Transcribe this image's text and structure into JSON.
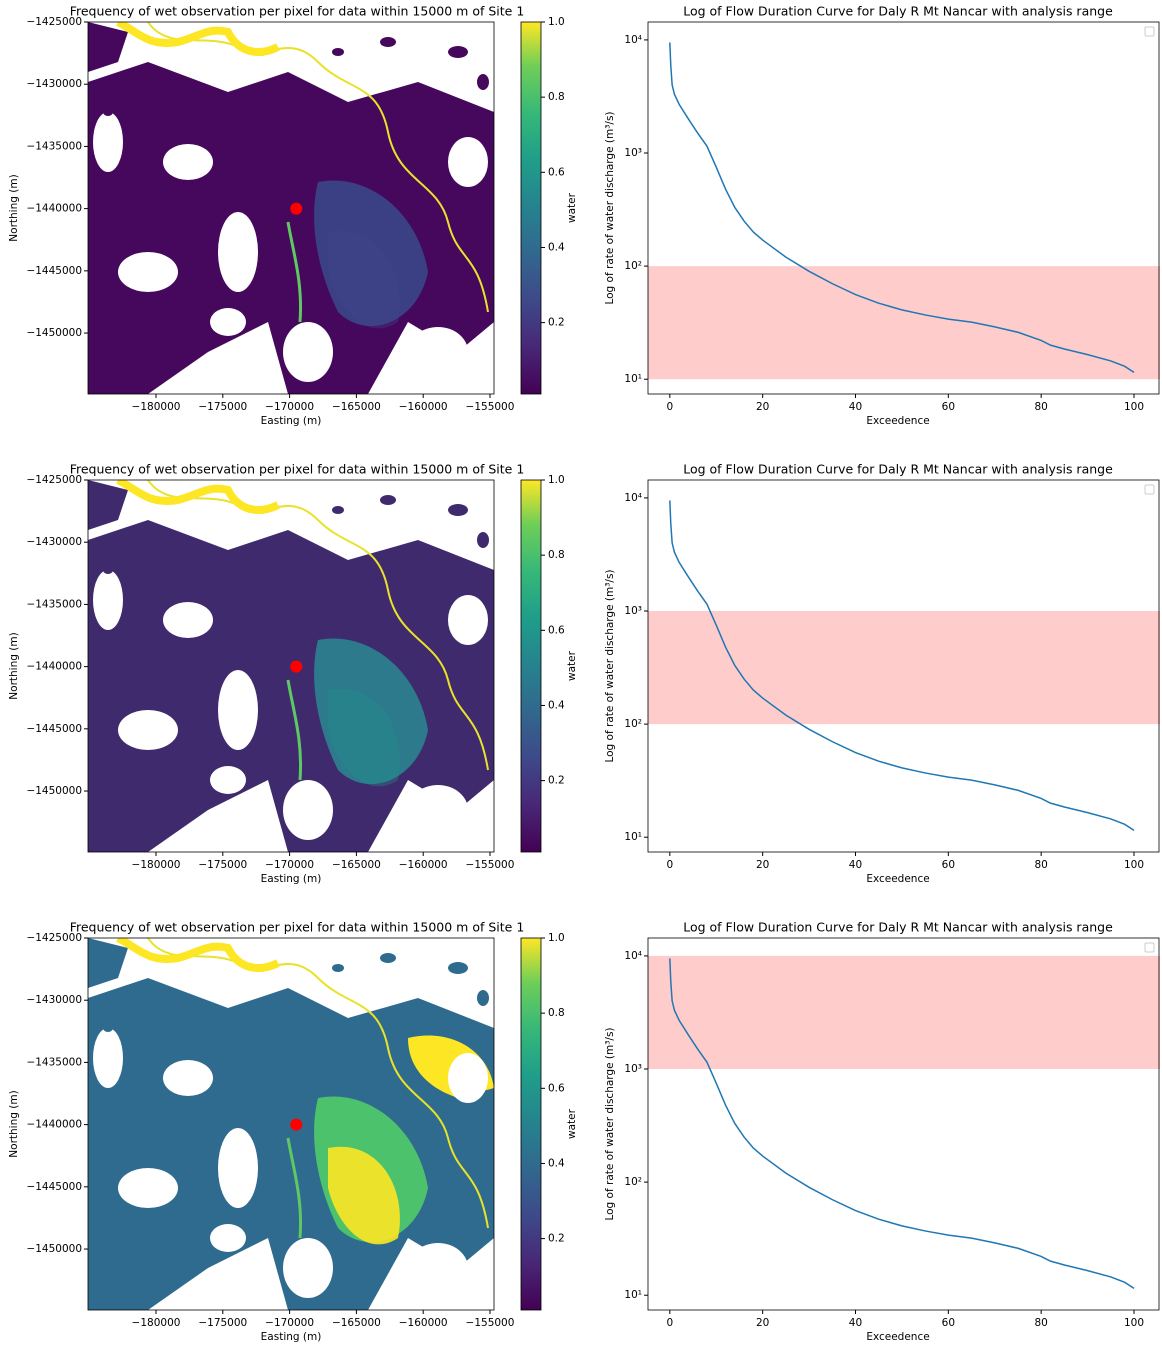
{
  "chart_data": [
    {
      "type": "raster-map",
      "title": "Frequency of wet observation per pixel for data within 15000 m of Site 1",
      "xlabel": "Easting (m)",
      "ylabel": "Northing (m)",
      "xlim": [
        -185090,
        -154700
      ],
      "ylim": [
        -1454900,
        -1425000
      ],
      "xticks": [
        {
          "value": -180000,
          "label": "−180000"
        },
        {
          "value": -175000,
          "label": "−175000"
        },
        {
          "value": -170000,
          "label": "−170000"
        },
        {
          "value": -165000,
          "label": "−165000"
        },
        {
          "value": -160000,
          "label": "−160000"
        },
        {
          "value": -155000,
          "label": "−155000"
        }
      ],
      "yticks": [
        {
          "value": -1425000,
          "label": "−1425000"
        },
        {
          "value": -1430000,
          "label": "−1430000"
        },
        {
          "value": -1435000,
          "label": "−1435000"
        },
        {
          "value": -1440000,
          "label": "−1440000"
        },
        {
          "value": -1445000,
          "label": "−1445000"
        },
        {
          "value": -1450000,
          "label": "−1450000"
        }
      ],
      "colorbar": {
        "label": "water",
        "colormap": "viridis",
        "lim": [
          0.01,
          1
        ],
        "ticks": [
          0.2,
          0.4,
          0.6,
          0.8,
          {
            "value": 1,
            "label": "1.0"
          }
        ]
      },
      "points": {
        "x": [
          -169500
        ],
        "y": [
          -1440000
        ],
        "color": "#ff0000"
      }
    },
    {
      "type": "line",
      "title": "Log of Flow Duration Curve for Daly R Mt Nancar with analysis range",
      "xlabel": "Exceedence",
      "ylabel": "Log of rate of water discharge (m³/s)",
      "log_y": true,
      "xlim": [
        -4.7,
        105.6
      ],
      "ylim": [
        7.4,
        14400
      ],
      "xticks": [
        0,
        20,
        40,
        60,
        80,
        100
      ],
      "yticks": [
        {
          "value": 10,
          "label": "10¹"
        },
        {
          "value": 100,
          "label": "10²"
        },
        {
          "value": 1000,
          "label": "10³"
        },
        {
          "value": 10000,
          "label": "10⁴"
        }
      ],
      "x": [
        0,
        0.2,
        0.5,
        1,
        2,
        4,
        6,
        8,
        10,
        12,
        14,
        16,
        18,
        20,
        25,
        30,
        35,
        40,
        45,
        50,
        55,
        60,
        65,
        70,
        75,
        80,
        82,
        85,
        90,
        95,
        98,
        100
      ],
      "series": [
        {
          "color": "#1f77b4",
          "values": [
            9500,
            6000,
            4000,
            3300,
            2700,
            2000,
            1500,
            1150,
            750,
            480,
            330,
            250,
            200,
            170,
            120,
            90,
            70,
            56,
            47,
            41,
            37,
            34,
            32,
            29,
            26,
            22,
            20,
            18.5,
            16.5,
            14.5,
            13,
            11.5
          ]
        }
      ],
      "span": {
        "range": [
          10,
          100
        ],
        "color": "#ffcccc"
      },
      "legend": "upper right"
    },
    {
      "type": "raster-map",
      "title": "Frequency of wet observation per pixel for data within 15000 m of Site 1",
      "xlabel": "Easting (m)",
      "ylabel": "Northing (m)",
      "xlim": [
        -185090,
        -154700
      ],
      "ylim": [
        -1454900,
        -1425000
      ],
      "xticks": [
        {
          "value": -180000,
          "label": "−180000"
        },
        {
          "value": -175000,
          "label": "−175000"
        },
        {
          "value": -170000,
          "label": "−170000"
        },
        {
          "value": -165000,
          "label": "−165000"
        },
        {
          "value": -160000,
          "label": "−160000"
        },
        {
          "value": -155000,
          "label": "−155000"
        }
      ],
      "yticks": [
        {
          "value": -1425000,
          "label": "−1425000"
        },
        {
          "value": -1430000,
          "label": "−1430000"
        },
        {
          "value": -1435000,
          "label": "−1435000"
        },
        {
          "value": -1440000,
          "label": "−1440000"
        },
        {
          "value": -1445000,
          "label": "−1445000"
        },
        {
          "value": -1450000,
          "label": "−1450000"
        }
      ],
      "colorbar": {
        "label": "water",
        "colormap": "viridis",
        "lim": [
          0.01,
          1
        ],
        "ticks": [
          0.2,
          0.4,
          0.6,
          0.8,
          {
            "value": 1,
            "label": "1.0"
          }
        ]
      },
      "points": {
        "x": [
          -169500
        ],
        "y": [
          -1440000
        ],
        "color": "#ff0000"
      }
    },
    {
      "type": "line",
      "title": "Log of Flow Duration Curve for Daly R Mt Nancar with analysis range",
      "xlabel": "Exceedence",
      "ylabel": "Log of rate of water discharge (m³/s)",
      "log_y": true,
      "xlim": [
        -4.7,
        105.6
      ],
      "ylim": [
        7.4,
        14400
      ],
      "xticks": [
        0,
        20,
        40,
        60,
        80,
        100
      ],
      "yticks": [
        {
          "value": 10,
          "label": "10¹"
        },
        {
          "value": 100,
          "label": "10²"
        },
        {
          "value": 1000,
          "label": "10³"
        },
        {
          "value": 10000,
          "label": "10⁴"
        }
      ],
      "x": [
        0,
        0.2,
        0.5,
        1,
        2,
        4,
        6,
        8,
        10,
        12,
        14,
        16,
        18,
        20,
        25,
        30,
        35,
        40,
        45,
        50,
        55,
        60,
        65,
        70,
        75,
        80,
        82,
        85,
        90,
        95,
        98,
        100
      ],
      "series": [
        {
          "color": "#1f77b4",
          "values": [
            9500,
            6000,
            4000,
            3300,
            2700,
            2000,
            1500,
            1150,
            750,
            480,
            330,
            250,
            200,
            170,
            120,
            90,
            70,
            56,
            47,
            41,
            37,
            34,
            32,
            29,
            26,
            22,
            20,
            18.5,
            16.5,
            14.5,
            13,
            11.5
          ]
        }
      ],
      "span": {
        "range": [
          100,
          1000
        ],
        "color": "#ffcccc"
      },
      "legend": "upper right"
    },
    {
      "type": "raster-map",
      "title": "Frequency of wet observation per pixel for data within 15000 m of Site 1",
      "xlabel": "Easting (m)",
      "ylabel": "Northing (m)",
      "xlim": [
        -185090,
        -154700
      ],
      "ylim": [
        -1454900,
        -1425000
      ],
      "xticks": [
        {
          "value": -180000,
          "label": "−180000"
        },
        {
          "value": -175000,
          "label": "−175000"
        },
        {
          "value": -170000,
          "label": "−170000"
        },
        {
          "value": -165000,
          "label": "−165000"
        },
        {
          "value": -160000,
          "label": "−160000"
        },
        {
          "value": -155000,
          "label": "−155000"
        }
      ],
      "yticks": [
        {
          "value": -1425000,
          "label": "−1425000"
        },
        {
          "value": -1430000,
          "label": "−1430000"
        },
        {
          "value": -1435000,
          "label": "−1435000"
        },
        {
          "value": -1440000,
          "label": "−1440000"
        },
        {
          "value": -1445000,
          "label": "−1445000"
        },
        {
          "value": -1450000,
          "label": "−1450000"
        }
      ],
      "colorbar": {
        "label": "water",
        "colormap": "viridis",
        "lim": [
          0.01,
          1
        ],
        "ticks": [
          0.2,
          0.4,
          0.6,
          0.8,
          {
            "value": 1,
            "label": "1.0"
          }
        ]
      },
      "points": {
        "x": [
          -169500
        ],
        "y": [
          -1440000
        ],
        "color": "#ff0000"
      }
    },
    {
      "type": "line",
      "title": "Log of Flow Duration Curve for Daly R Mt Nancar with analysis range",
      "xlabel": "Exceedence",
      "ylabel": "Log of rate of water discharge (m³/s)",
      "log_y": true,
      "xlim": [
        -4.7,
        105.6
      ],
      "ylim": [
        7.4,
        14400
      ],
      "xticks": [
        0,
        20,
        40,
        60,
        80,
        100
      ],
      "yticks": [
        {
          "value": 10,
          "label": "10¹"
        },
        {
          "value": 100,
          "label": "10²"
        },
        {
          "value": 1000,
          "label": "10³"
        },
        {
          "value": 10000,
          "label": "10⁴"
        }
      ],
      "x": [
        0,
        0.2,
        0.5,
        1,
        2,
        4,
        6,
        8,
        10,
        12,
        14,
        16,
        18,
        20,
        25,
        30,
        35,
        40,
        45,
        50,
        55,
        60,
        65,
        70,
        75,
        80,
        82,
        85,
        90,
        95,
        98,
        100
      ],
      "series": [
        {
          "color": "#1f77b4",
          "values": [
            9500,
            6000,
            4000,
            3300,
            2700,
            2000,
            1500,
            1150,
            750,
            480,
            330,
            250,
            200,
            170,
            120,
            90,
            70,
            56,
            47,
            41,
            37,
            34,
            32,
            29,
            26,
            22,
            20,
            18.5,
            16.5,
            14.5,
            13,
            11.5
          ]
        }
      ],
      "span": {
        "range": [
          1000,
          10000
        ],
        "color": "#ffcccc"
      },
      "legend": "upper right"
    }
  ]
}
